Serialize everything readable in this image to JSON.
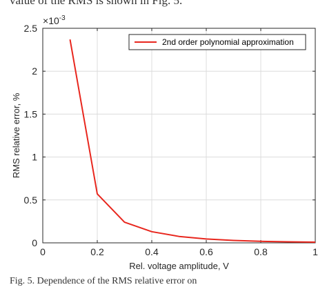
{
  "page": {
    "top_text": "value of the RMS is shown in Fig. 5.",
    "bottom_text": "Fig. 5. Dependence of the RMS relative error on"
  },
  "chart_data": {
    "type": "line",
    "xlabel": "Rel. voltage amplitude, V",
    "ylabel": "RMS relative error, %",
    "y_exponent_label": "10",
    "y_exponent_power": "-3",
    "y_exponent_prefix": "×",
    "xlim": [
      0,
      1
    ],
    "ylim": [
      0,
      2.5
    ],
    "x_ticks": [
      0,
      0.2,
      0.4,
      0.6,
      0.8,
      1
    ],
    "x_tick_labels": [
      "0",
      "0.2",
      "0.4",
      "0.6",
      "0.8",
      "1"
    ],
    "y_ticks": [
      0,
      0.5,
      1,
      1.5,
      2,
      2.5
    ],
    "y_tick_labels": [
      "0",
      "0.5",
      "1",
      "1.5",
      "2",
      "2.5"
    ],
    "grid": true,
    "legend_position": "top-right",
    "series": [
      {
        "name": "2nd order polynomial approximation",
        "color": "#e8261d",
        "x": [
          0.1,
          0.2,
          0.3,
          0.4,
          0.5,
          0.6,
          0.7,
          0.8,
          0.9,
          1.0
        ],
        "y": [
          2.37,
          0.57,
          0.24,
          0.13,
          0.075,
          0.045,
          0.028,
          0.018,
          0.012,
          0.008
        ]
      }
    ]
  }
}
